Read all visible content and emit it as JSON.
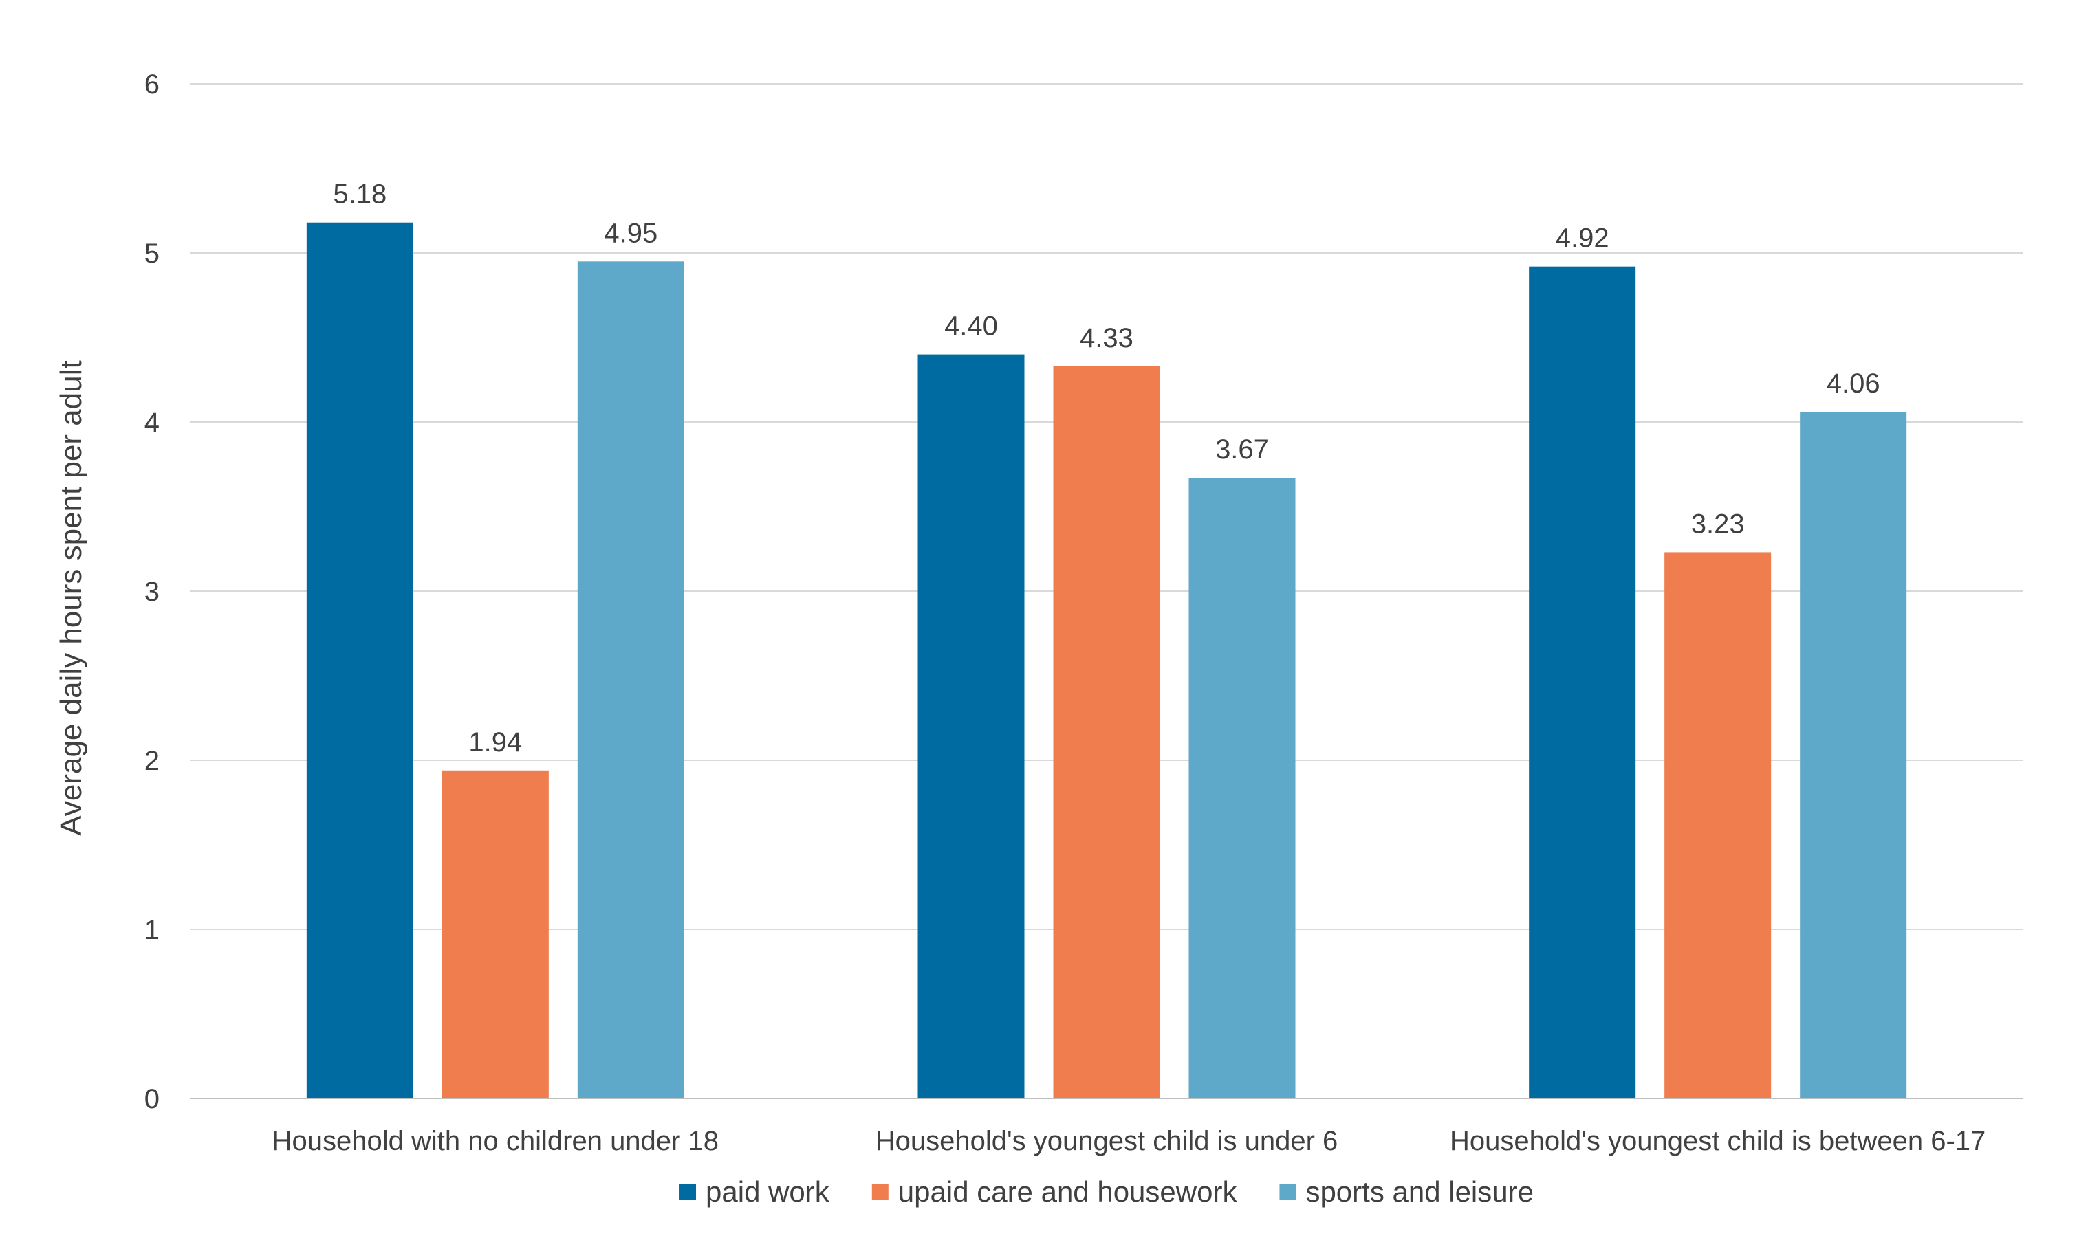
{
  "chart_data": {
    "type": "bar",
    "categories": [
      "Household with no children under 18",
      "Household's youngest child is under 6",
      "Household's youngest child is between 6-17"
    ],
    "series": [
      {
        "name": "paid work",
        "color": "#006ba0",
        "values": [
          5.18,
          4.4,
          4.92
        ],
        "labels": [
          "5.18",
          "4.40",
          "4.92"
        ]
      },
      {
        "name": "upaid care and housework",
        "color": "#f07d4e",
        "values": [
          1.94,
          4.33,
          3.23
        ],
        "labels": [
          "1.94",
          "4.33",
          "3.23"
        ]
      },
      {
        "name": "sports and leisure",
        "color": "#5ea8c9",
        "values": [
          4.95,
          3.67,
          4.06
        ],
        "labels": [
          "4.95",
          "3.67",
          "4.06"
        ]
      }
    ],
    "title": "",
    "xlabel": "",
    "ylabel": "Average daily hours spent per adult",
    "ylim": [
      0,
      6
    ],
    "yticks": [
      "0",
      "1",
      "2",
      "3",
      "4",
      "5",
      "6"
    ],
    "grid": true,
    "legend_position": "bottom"
  }
}
